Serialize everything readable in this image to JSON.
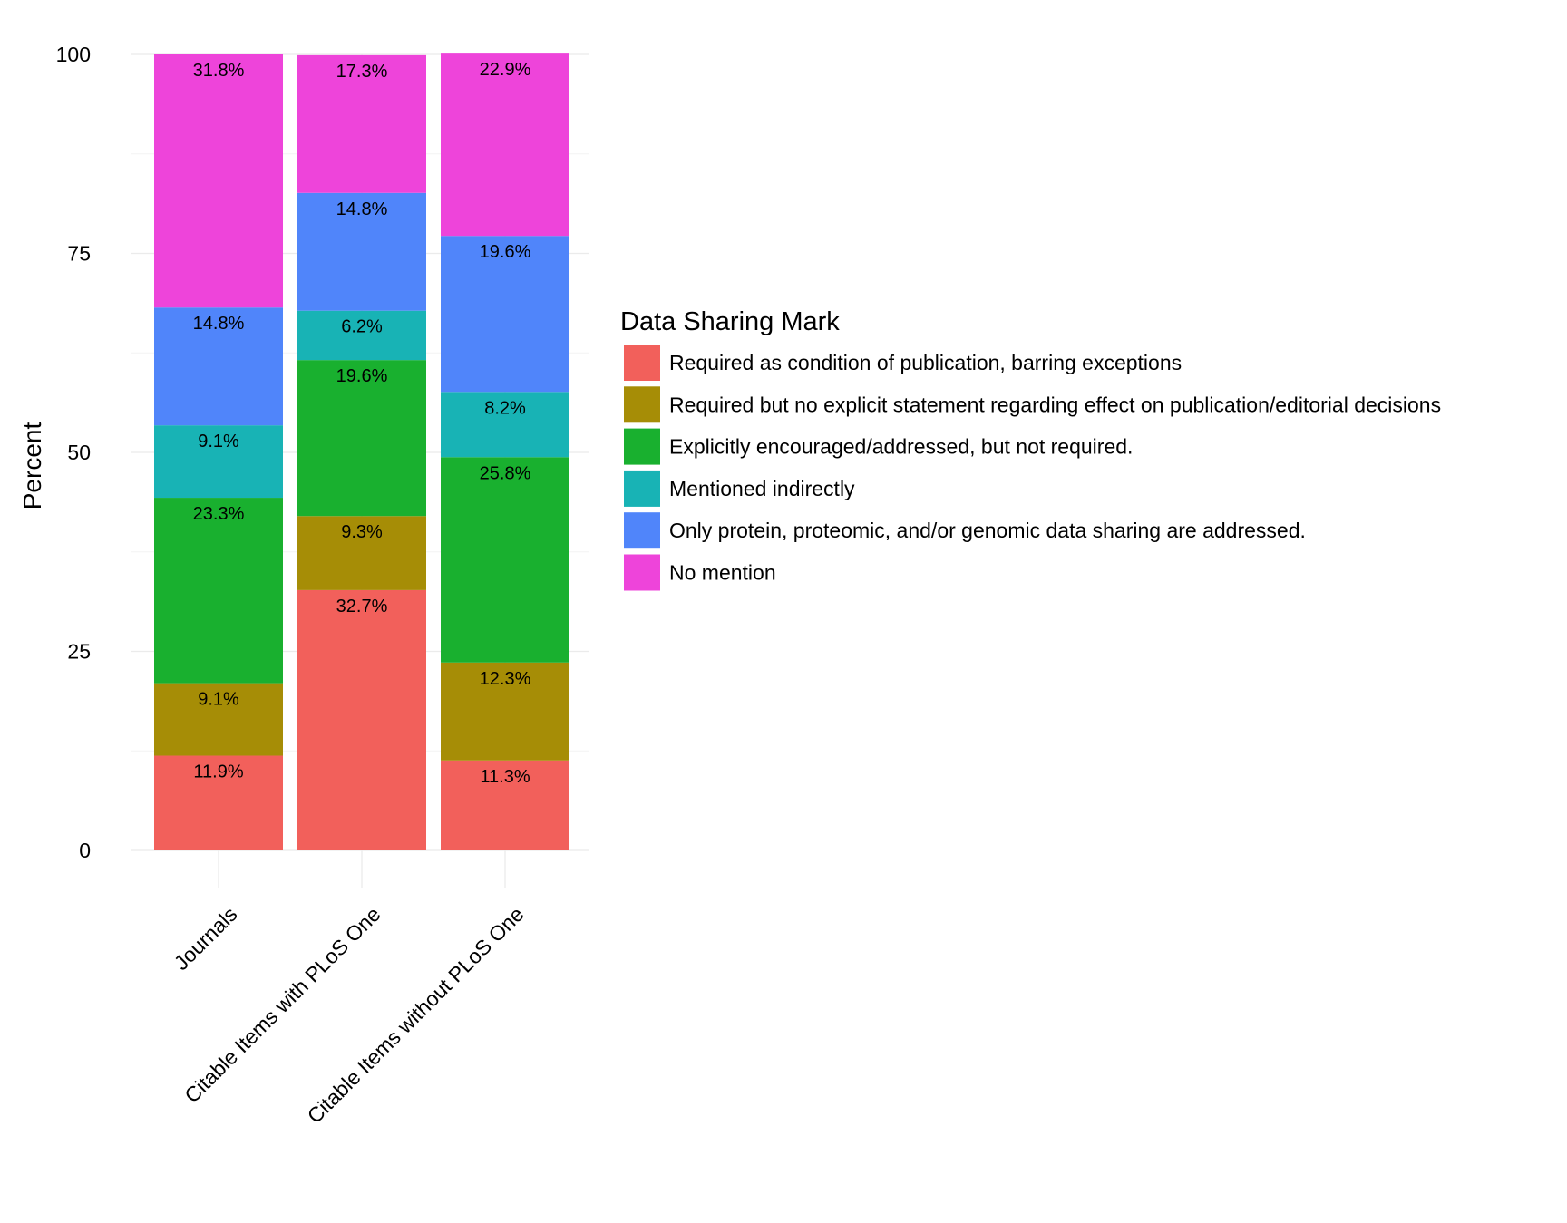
{
  "chart_data": {
    "type": "bar",
    "stacked": true,
    "categories": [
      "Journals",
      "Citable Items with PLoS One",
      "Citable Items without PLoS One"
    ],
    "ylabel": "Percent",
    "xlabel": "",
    "ylim": [
      0,
      100
    ],
    "yticks": [
      0,
      25,
      50,
      75,
      100
    ],
    "grid": true,
    "legend": {
      "title": "Data Sharing Mark",
      "position": "right"
    },
    "series": [
      {
        "name": "Required as condition of publication, barring exceptions",
        "color": "#F2605B",
        "values": [
          11.9,
          32.7,
          11.3
        ],
        "labels": [
          "11.9%",
          "32.7%",
          "11.3%"
        ]
      },
      {
        "name": "Required but no explicit statement regarding effect on publication/editorial decisions",
        "color": "#A68D06",
        "values": [
          9.1,
          9.3,
          12.3
        ],
        "labels": [
          "9.1%",
          "9.3%",
          "12.3%"
        ]
      },
      {
        "name": "Explicitly encouraged/addressed, but not required.",
        "color": "#19B02F",
        "values": [
          23.3,
          19.6,
          25.8
        ],
        "labels": [
          "23.3%",
          "19.6%",
          "25.8%"
        ]
      },
      {
        "name": "Mentioned indirectly",
        "color": "#18B3B5",
        "values": [
          9.1,
          6.2,
          8.2
        ],
        "labels": [
          "9.1%",
          "6.2%",
          "8.2%"
        ]
      },
      {
        "name": "Only protein, proteomic, and/or genomic data sharing are addressed.",
        "color": "#5085FA",
        "values": [
          14.8,
          14.8,
          19.6
        ],
        "labels": [
          "14.8%",
          "14.8%",
          "19.6%"
        ]
      },
      {
        "name": "No mention",
        "color": "#EE44DA",
        "values": [
          31.8,
          17.3,
          22.9
        ],
        "labels": [
          "31.8%",
          "17.3%",
          "22.9%"
        ]
      }
    ]
  }
}
